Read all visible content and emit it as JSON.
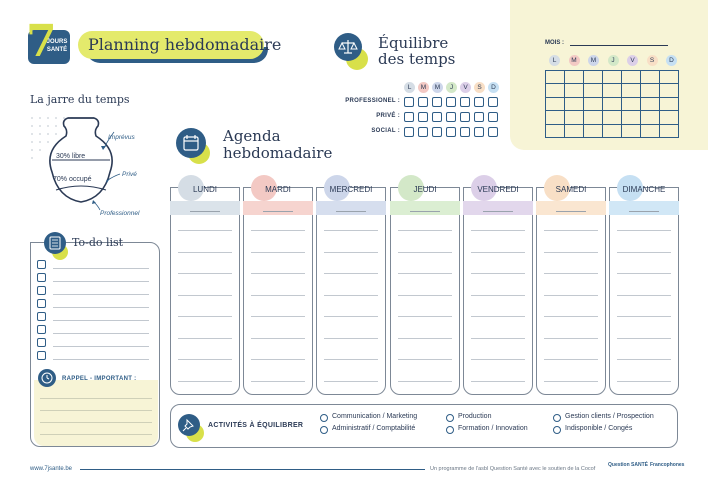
{
  "logo": {
    "number": "7",
    "line1": "JOURS",
    "line2": "SANTÉ"
  },
  "title": "Planning hebdomadaire",
  "equilibre": {
    "title_line1": "Équilibre",
    "title_line2": "des temps",
    "days": [
      {
        "letter": "L",
        "color": "#d5dde5"
      },
      {
        "letter": "M",
        "color": "#f3c9c4"
      },
      {
        "letter": "M",
        "color": "#cdd6ea"
      },
      {
        "letter": "J",
        "color": "#d3e8c8"
      },
      {
        "letter": "V",
        "color": "#dccfe8"
      },
      {
        "letter": "S",
        "color": "#f8dfc6"
      },
      {
        "letter": "D",
        "color": "#c6e0f3"
      }
    ],
    "rows": [
      "PROFESSIONEL :",
      "PRIVÉ :",
      "SOCIAL :"
    ]
  },
  "calendar": {
    "mois_label": "MOIS :",
    "days": [
      {
        "letter": "L",
        "color": "#d5dde5"
      },
      {
        "letter": "M",
        "color": "#f3c9c4"
      },
      {
        "letter": "M",
        "color": "#cdd6ea"
      },
      {
        "letter": "J",
        "color": "#d3e8c8"
      },
      {
        "letter": "V",
        "color": "#dccfe8"
      },
      {
        "letter": "S",
        "color": "#f8dfc6"
      },
      {
        "letter": "D",
        "color": "#c6e0f3"
      }
    ]
  },
  "jarre": {
    "title": "La jarre du temps",
    "libre": "30% libre",
    "occupe": "70% occupé",
    "imprevus": "Imprévus",
    "prive": "Privé",
    "professionnel": "Professionnel"
  },
  "agenda": {
    "title_line1": "Agenda",
    "title_line2": "hebdomadaire",
    "days": [
      {
        "name": "LUNDI",
        "color": "#d5dde5",
        "band": "#dbe3ea"
      },
      {
        "name": "MARDI",
        "color": "#f3c9c4",
        "band": "#f6d4cf"
      },
      {
        "name": "MERCREDI",
        "color": "#cdd6ea",
        "band": "#d6deee"
      },
      {
        "name": "JEUDI",
        "color": "#d3e8c8",
        "band": "#dbeed2"
      },
      {
        "name": "VENDREDI",
        "color": "#dccfe8",
        "band": "#e2d7ec"
      },
      {
        "name": "SAMEDI",
        "color": "#f8dfc6",
        "band": "#fae6d1"
      },
      {
        "name": "DIMANCHE",
        "color": "#c6e0f3",
        "band": "#d1e7f6"
      }
    ]
  },
  "todo": {
    "title": "To-do list",
    "rappel": "RAPPEL - IMPORTANT :"
  },
  "activites": {
    "label": "ACTIVITÉS À ÉQUILIBRER",
    "options": [
      "Communication / Marketing",
      "Administratif / Comptabilité",
      "Production",
      "Formation / Innovation",
      "Gestion clients / Prospection",
      "Indisponible / Congés"
    ]
  },
  "footer": {
    "url": "www.7jsante.be",
    "programme": "Un programme de l'asbl Question Santé avec le soutien de la Cocof",
    "logo1": "Question SANTÉ",
    "logo2": "Francophones"
  }
}
